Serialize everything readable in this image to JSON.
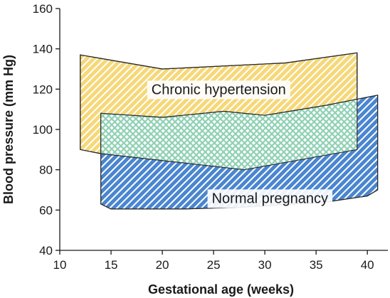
{
  "chart_data": {
    "type": "area",
    "xlabel": "Gestational age (weeks)",
    "ylabel": "Blood pressure (mm Hg)",
    "xlim": [
      10,
      42
    ],
    "ylim": [
      40,
      160
    ],
    "xticks": [
      10,
      15,
      20,
      25,
      30,
      35,
      40
    ],
    "yticks": [
      40,
      60,
      80,
      100,
      120,
      140,
      160
    ],
    "grid": false,
    "series": [
      {
        "name": "Chronic hypertension",
        "color": "#f6d87a",
        "hatch_color": "#ffffff",
        "pattern": "diagonal-hatch",
        "upper": {
          "x": [
            12,
            20,
            32,
            39
          ],
          "y": [
            137,
            130,
            133,
            138
          ]
        },
        "lower": {
          "x": [
            12,
            14,
            28,
            39
          ],
          "y": [
            90,
            88,
            80,
            90
          ]
        }
      },
      {
        "name": "Normal pregnancy",
        "color": "#4a86d0",
        "hatch_color": "#ffffff",
        "pattern": "diagonal-hatch",
        "upper": {
          "x": [
            14,
            20,
            26,
            30,
            36,
            41
          ],
          "y": [
            108,
            106,
            109,
            107,
            112,
            117
          ]
        },
        "lower": {
          "x": [
            14,
            15,
            22,
            28,
            36,
            40,
            41
          ],
          "y": [
            63,
            60.5,
            60.5,
            61.5,
            64,
            67,
            70
          ]
        }
      }
    ],
    "overlap": {
      "color": "#8fd0b4",
      "pattern": "crosshatch"
    },
    "annotations": [
      {
        "text": "Chronic hypertension",
        "x": 25.5,
        "y": 120
      },
      {
        "text": "Normal pregnancy",
        "x": 30.5,
        "y": 66
      }
    ]
  }
}
